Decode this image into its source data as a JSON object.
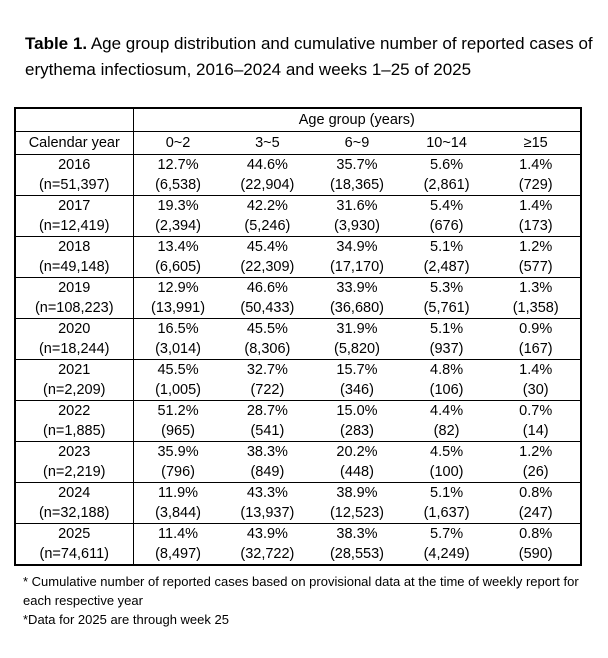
{
  "title": {
    "label": "Table 1.",
    "text": " Age group distribution and cumulative number of reported cases of erythema infectiosum, 2016–2024 and weeks 1–25 of 2025"
  },
  "table": {
    "header": {
      "age_group": "Age group (years)",
      "calendar_year": "Calendar year",
      "age_columns": [
        "0~2",
        "3~5",
        "6~9",
        "10~14",
        "≥15"
      ]
    },
    "rows": [
      {
        "year": "2016",
        "n": "(n=51,397)",
        "percents": [
          "12.7%",
          "44.6%",
          "35.7%",
          "5.6%",
          "1.4%"
        ],
        "counts": [
          "(6,538)",
          "(22,904)",
          "(18,365)",
          "(2,861)",
          "(729)"
        ]
      },
      {
        "year": "2017",
        "n": "(n=12,419)",
        "percents": [
          "19.3%",
          "42.2%",
          "31.6%",
          "5.4%",
          "1.4%"
        ],
        "counts": [
          "(2,394)",
          "(5,246)",
          "(3,930)",
          "(676)",
          "(173)"
        ]
      },
      {
        "year": "2018",
        "n": "(n=49,148)",
        "percents": [
          "13.4%",
          "45.4%",
          "34.9%",
          "5.1%",
          "1.2%"
        ],
        "counts": [
          "(6,605)",
          "(22,309)",
          "(17,170)",
          "(2,487)",
          "(577)"
        ]
      },
      {
        "year": "2019",
        "n": "(n=108,223)",
        "percents": [
          "12.9%",
          "46.6%",
          "33.9%",
          "5.3%",
          "1.3%"
        ],
        "counts": [
          "(13,991)",
          "(50,433)",
          "(36,680)",
          "(5,761)",
          "(1,358)"
        ]
      },
      {
        "year": "2020",
        "n": "(n=18,244)",
        "percents": [
          "16.5%",
          "45.5%",
          "31.9%",
          "5.1%",
          "0.9%"
        ],
        "counts": [
          "(3,014)",
          "(8,306)",
          "(5,820)",
          "(937)",
          "(167)"
        ]
      },
      {
        "year": "2021",
        "n": "(n=2,209)",
        "percents": [
          "45.5%",
          "32.7%",
          "15.7%",
          "4.8%",
          "1.4%"
        ],
        "counts": [
          "(1,005)",
          "(722)",
          "(346)",
          "(106)",
          "(30)"
        ]
      },
      {
        "year": "2022",
        "n": "(n=1,885)",
        "percents": [
          "51.2%",
          "28.7%",
          "15.0%",
          "4.4%",
          "0.7%"
        ],
        "counts": [
          "(965)",
          "(541)",
          "(283)",
          "(82)",
          "(14)"
        ]
      },
      {
        "year": "2023",
        "n": "(n=2,219)",
        "percents": [
          "35.9%",
          "38.3%",
          "20.2%",
          "4.5%",
          "1.2%"
        ],
        "counts": [
          "(796)",
          "(849)",
          "(448)",
          "(100)",
          "(26)"
        ]
      },
      {
        "year": "2024",
        "n": "(n=32,188)",
        "percents": [
          "11.9%",
          "43.3%",
          "38.9%",
          "5.1%",
          "0.8%"
        ],
        "counts": [
          "(3,844)",
          "(13,937)",
          "(12,523)",
          "(1,637)",
          "(247)"
        ]
      },
      {
        "year": "2025",
        "n": "(n=74,611)",
        "percents": [
          "11.4%",
          "43.9%",
          "38.3%",
          "5.7%",
          "0.8%"
        ],
        "counts": [
          "(8,497)",
          "(32,722)",
          "(28,553)",
          "(4,249)",
          "(590)"
        ]
      }
    ]
  },
  "footnotes": [
    "* Cumulative number of reported cases based on provisional data at the time of weekly report for each respective year",
    "*Data for 2025 are through week 25"
  ],
  "colors": {
    "text": "#000000",
    "border": "#000000",
    "background": "#ffffff"
  }
}
